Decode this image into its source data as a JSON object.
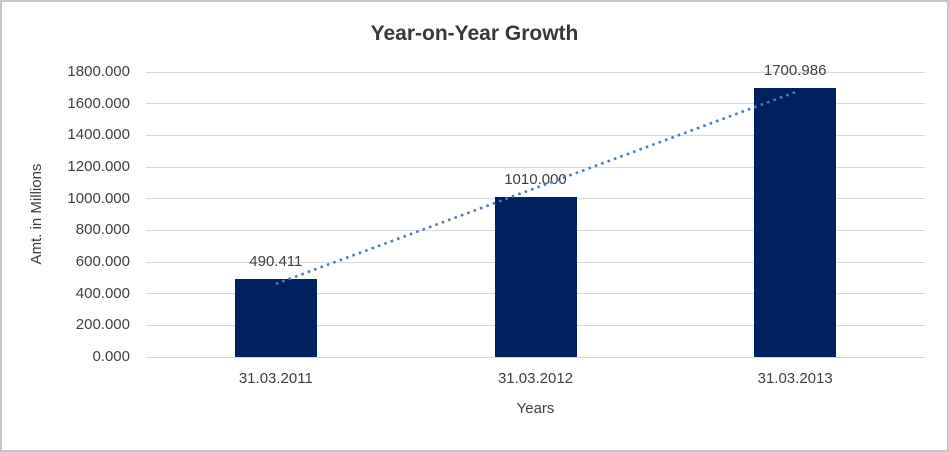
{
  "chart_data": {
    "type": "bar",
    "title": "Year-on-Year Growth",
    "xlabel": "Years",
    "ylabel": "Amt. in Millions",
    "categories": [
      "31.03.2011",
      "31.03.2012",
      "31.03.2013"
    ],
    "values": [
      490.411,
      1010.0,
      1700.986
    ],
    "data_labels": [
      "490.411",
      "1010.000",
      "1700.986"
    ],
    "ylim": [
      0,
      1800
    ],
    "ytick_step": 200,
    "ytick_labels": [
      "0.000",
      "200.000",
      "400.000",
      "600.000",
      "800.000",
      "1000.000",
      "1200.000",
      "1400.000",
      "1600.000",
      "1800.000"
    ],
    "grid": "horizontal",
    "legend": "none",
    "trendline": {
      "type": "linear",
      "style": "dotted"
    },
    "colors": {
      "bar": "#002060",
      "trendline": "#4a7ebb",
      "gridline": "#d9d9d9",
      "axis_text": "#404040",
      "title_text": "#383838",
      "border": "#c6c6c6",
      "background": "#ffffff"
    }
  }
}
